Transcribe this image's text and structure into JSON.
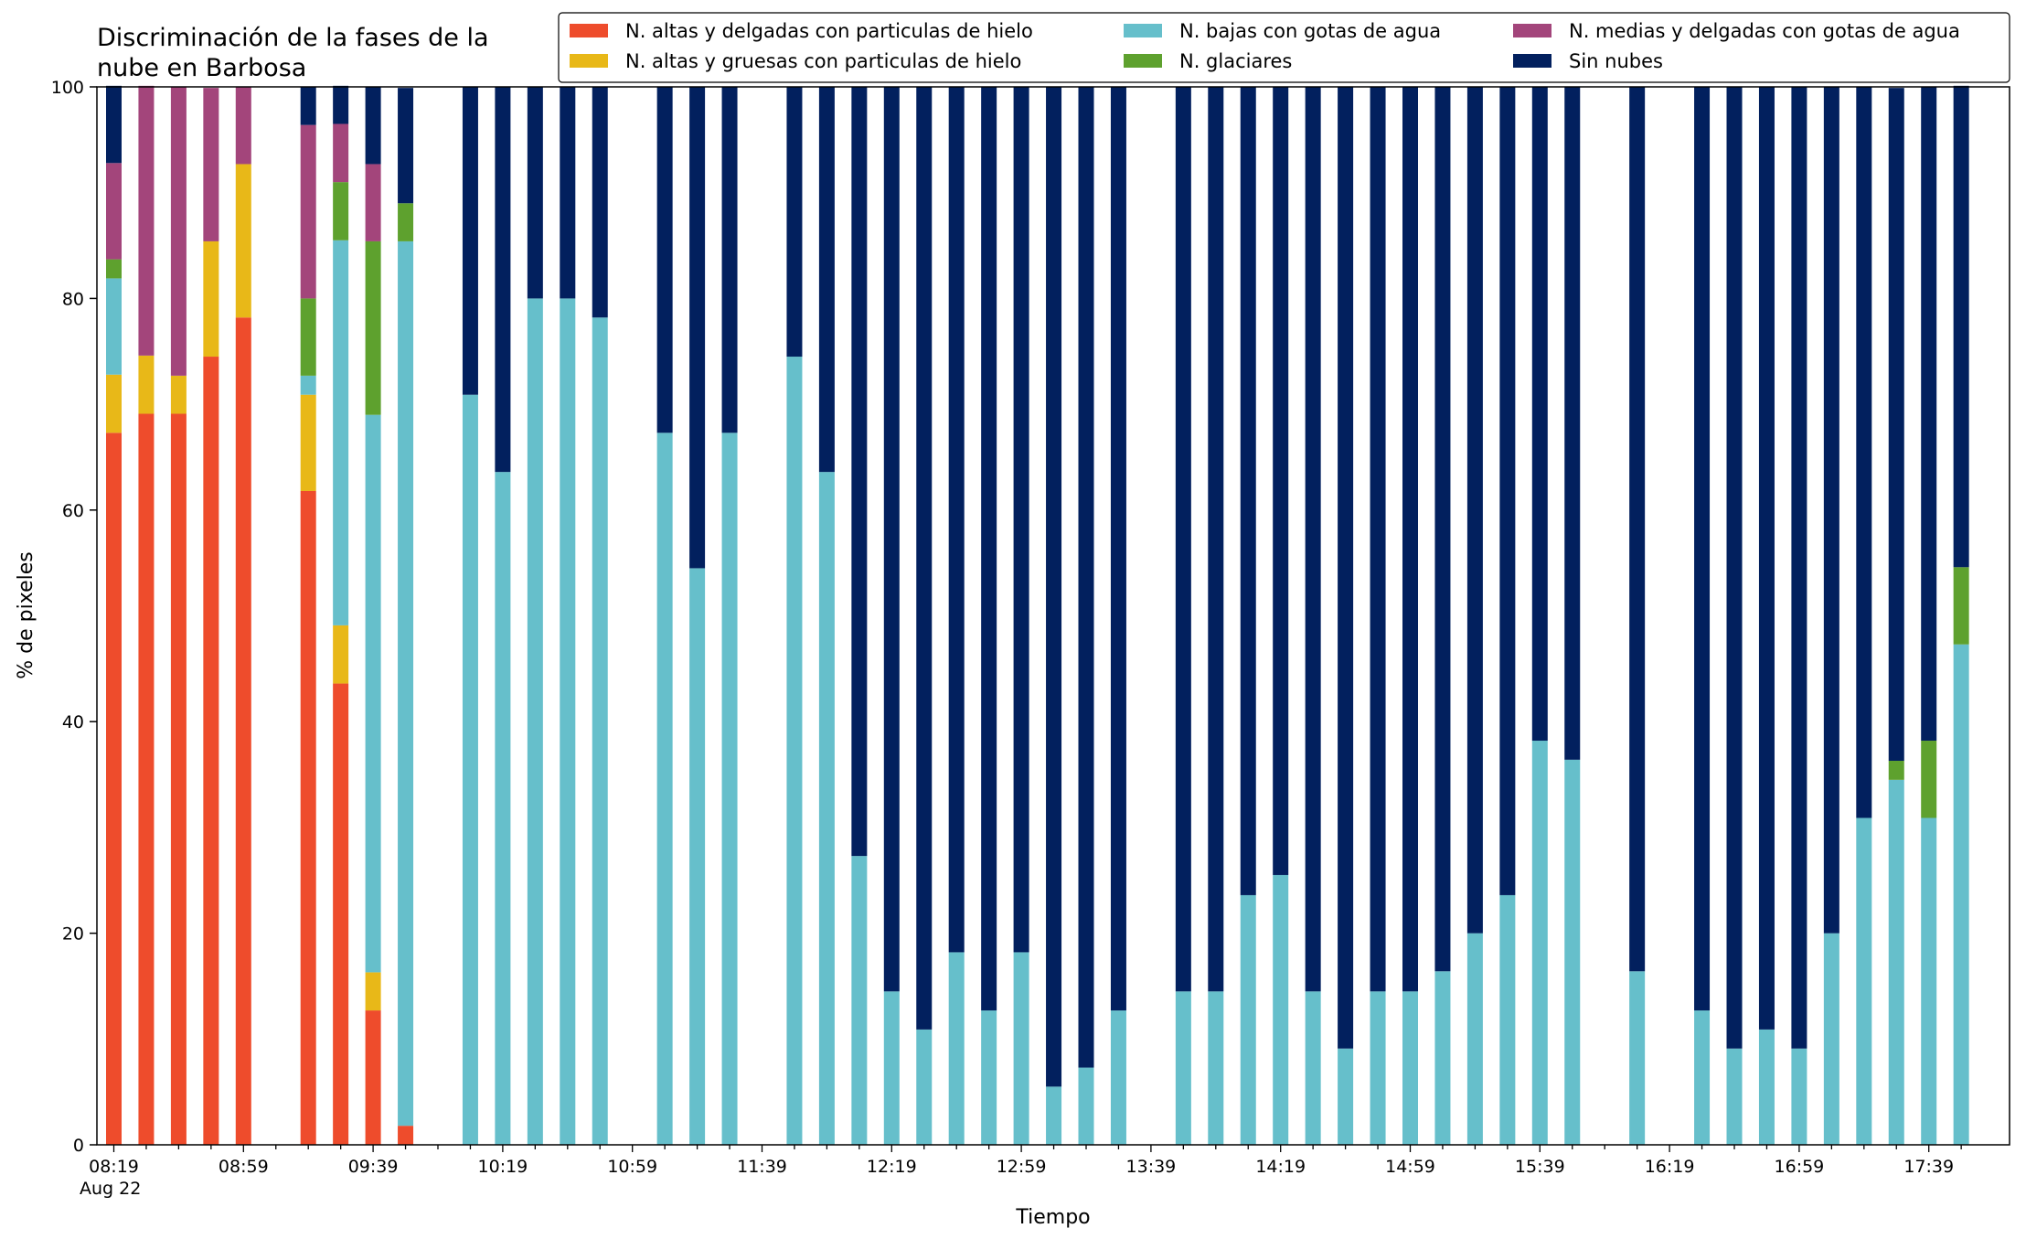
{
  "chart_data": {
    "type": "bar",
    "stacked": true,
    "title": "Discriminación de la fases de la\nnube en Barbosa",
    "xlabel": "Tiempo",
    "ylabel": "% de pixeles",
    "ylim": [
      0,
      100
    ],
    "yticks": [
      "0",
      "20",
      "40",
      "60",
      "80",
      "100"
    ],
    "x_date_label": "Aug 22",
    "x_ticks": [
      "08:19",
      "08:59",
      "09:39",
      "10:19",
      "10:59",
      "11:39",
      "12:19",
      "12:59",
      "13:39",
      "14:19",
      "14:59",
      "15:39",
      "16:19",
      "16:59",
      "17:39"
    ],
    "legend_position": "top-right",
    "grid": false,
    "categories": [
      "08:19",
      "08:29",
      "08:39",
      "08:49",
      "08:59",
      "09:09",
      "09:19",
      "09:29",
      "09:39",
      "09:49",
      "09:59",
      "10:09",
      "10:19",
      "10:29",
      "10:39",
      "10:49",
      "10:59",
      "11:09",
      "11:19",
      "11:29",
      "11:39",
      "11:49",
      "11:59",
      "12:09",
      "12:19",
      "12:29",
      "12:39",
      "12:49",
      "12:59",
      "13:09",
      "13:19",
      "13:29",
      "13:39",
      "13:49",
      "13:59",
      "14:09",
      "14:19",
      "14:29",
      "14:39",
      "14:49",
      "14:59",
      "15:09",
      "15:19",
      "15:29",
      "15:39",
      "15:49",
      "15:59",
      "16:09",
      "16:19",
      "16:29",
      "16:39",
      "16:49",
      "16:59",
      "17:09",
      "17:19",
      "17:29",
      "17:39",
      "17:49"
    ],
    "series": [
      {
        "name": "N. altas y delgadas con particulas de hielo",
        "color": "#ee4c2c",
        "values": [
          67.3,
          69.1,
          69.1,
          74.5,
          78.2,
          0,
          61.8,
          43.6,
          12.7,
          1.8,
          0,
          0,
          0,
          0,
          0,
          0,
          0,
          0,
          0,
          0,
          0,
          0,
          0,
          0,
          0,
          0,
          0,
          0,
          0,
          0,
          0,
          0,
          0,
          0,
          0,
          0,
          0,
          0,
          0,
          0,
          0,
          0,
          0,
          0,
          0,
          0,
          0,
          0,
          0,
          0,
          0,
          0,
          0,
          0,
          0,
          0,
          0,
          0
        ]
      },
      {
        "name": "N. altas y gruesas con particulas de hielo",
        "color": "#e8b818",
        "values": [
          5.5,
          5.5,
          3.6,
          10.9,
          14.5,
          0,
          9.1,
          5.5,
          3.6,
          0,
          0,
          0,
          0,
          0,
          0,
          0,
          0,
          0,
          0,
          0,
          0,
          0,
          0,
          0,
          0,
          0,
          0,
          0,
          0,
          0,
          0,
          0,
          0,
          0,
          0,
          0,
          0,
          0,
          0,
          0,
          0,
          0,
          0,
          0,
          0,
          0,
          0,
          0,
          0,
          0,
          0,
          0,
          0,
          0,
          0,
          0,
          0,
          0
        ]
      },
      {
        "name": "N. bajas con gotas de agua",
        "color": "#66bfcb",
        "values": [
          9.1,
          0,
          0,
          0,
          0,
          0,
          1.8,
          36.4,
          52.7,
          83.6,
          0,
          70.9,
          63.6,
          80.0,
          80.0,
          78.2,
          0,
          67.3,
          54.5,
          67.3,
          0,
          74.5,
          63.6,
          27.3,
          14.5,
          10.9,
          18.2,
          12.7,
          18.2,
          5.5,
          7.3,
          12.7,
          0,
          14.5,
          14.5,
          23.6,
          25.5,
          14.5,
          9.1,
          14.5,
          14.5,
          16.4,
          20.0,
          23.6,
          38.2,
          36.4,
          0,
          16.4,
          0,
          12.7,
          9.1,
          10.9,
          9.1,
          20.0,
          30.9,
          34.5,
          30.9,
          47.3
        ]
      },
      {
        "name": "N. glaciares",
        "color": "#5ea12e",
        "values": [
          1.8,
          0,
          0,
          0,
          0,
          0,
          7.3,
          5.5,
          16.4,
          3.6,
          0,
          0,
          0,
          0,
          0,
          0,
          0,
          0,
          0,
          0,
          0,
          0,
          0,
          0,
          0,
          0,
          0,
          0,
          0,
          0,
          0,
          0,
          0,
          0,
          0,
          0,
          0,
          0,
          0,
          0,
          0,
          0,
          0,
          0,
          0,
          0,
          0,
          0,
          0,
          0,
          0,
          0,
          0,
          0,
          0,
          1.8,
          7.3,
          7.3
        ]
      },
      {
        "name": "N. medias y delgadas con gotas de agua",
        "color": "#a3457b",
        "values": [
          9.1,
          25.5,
          27.3,
          14.5,
          7.3,
          0,
          16.4,
          5.5,
          7.3,
          0,
          0,
          0,
          0,
          0,
          0,
          0,
          0,
          0,
          0,
          0,
          0,
          0,
          0,
          0,
          0,
          0,
          0,
          0,
          0,
          0,
          0,
          0,
          0,
          0,
          0,
          0,
          0,
          0,
          0,
          0,
          0,
          0,
          0,
          0,
          0,
          0,
          0,
          0,
          0,
          0,
          0,
          0,
          0,
          0,
          0,
          0,
          0,
          0
        ]
      },
      {
        "name": "Sin nubes",
        "color": "#02205e",
        "values": [
          7.3,
          0,
          0,
          0,
          0,
          0,
          3.6,
          3.6,
          7.3,
          10.9,
          0,
          29.1,
          36.4,
          20.0,
          20.0,
          21.8,
          0,
          32.7,
          45.5,
          32.7,
          0,
          25.5,
          36.4,
          72.7,
          85.5,
          89.1,
          81.8,
          87.3,
          81.8,
          94.5,
          92.7,
          87.3,
          0,
          85.5,
          85.5,
          76.4,
          74.5,
          85.5,
          90.9,
          85.5,
          85.5,
          83.6,
          80.0,
          76.4,
          61.8,
          63.6,
          0,
          83.6,
          0,
          87.3,
          90.9,
          89.1,
          90.9,
          80.0,
          69.1,
          63.6,
          61.8,
          45.5
        ]
      }
    ]
  }
}
